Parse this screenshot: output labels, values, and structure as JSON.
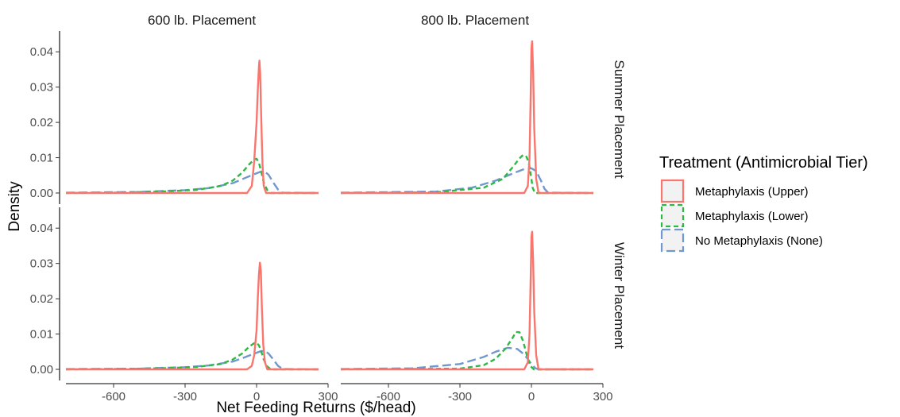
{
  "chart_data": {
    "type": "line",
    "subtype": "density",
    "xlabel": "Net Feeding Returns ($/head)",
    "ylabel": "Density",
    "xlim": [
      -800,
      300
    ],
    "ylim": [
      0,
      0.045
    ],
    "x_ticks": [
      -600,
      -300,
      0,
      300
    ],
    "x_tick_labels": [
      "-600",
      "-300",
      "0",
      "300"
    ],
    "y_ticks": [
      0,
      0.01,
      0.02,
      0.03,
      0.04
    ],
    "y_tick_labels": [
      "0.00",
      "0.01",
      "0.02",
      "0.03",
      "0.04"
    ],
    "col_facets": [
      "600 lb. Placement",
      "800 lb. Placement"
    ],
    "row_facets": [
      "Summer Placement",
      "Winter Placement"
    ],
    "legend": {
      "title": "Treatment (Antimicrobial Tier)",
      "position": "right",
      "items": [
        {
          "label": "Metaphylaxis (Upper)",
          "color": "#F8766D",
          "dash": "solid"
        },
        {
          "label": "Metaphylaxis (Lower)",
          "color": "#2DB843",
          "dash": "dashed"
        },
        {
          "label": "No Metaphylaxis (None)",
          "color": "#7197CF",
          "dash": "longdash"
        }
      ]
    },
    "grid": false,
    "panels": [
      {
        "col": "600 lb. Placement",
        "row": "Summer Placement",
        "series": [
          {
            "name": "Metaphylaxis (Upper)",
            "x": [
              -800,
              -40,
              -20,
              -10,
              0,
              5,
              10,
              12,
              15,
              20,
              25,
              30,
              40,
              260
            ],
            "y": [
              0,
              0,
              0.002,
              0.009,
              0.02,
              0.029,
              0.036,
              0.0375,
              0.034,
              0.02,
              0.008,
              0.002,
              0,
              0
            ]
          },
          {
            "name": "Metaphylaxis (Lower)",
            "x": [
              -800,
              -600,
              -400,
              -250,
              -150,
              -100,
              -60,
              -30,
              -10,
              0,
              10,
              20,
              30,
              45,
              60,
              260
            ],
            "y": [
              0,
              0.0001,
              0.0004,
              0.0009,
              0.002,
              0.0035,
              0.0058,
              0.0082,
              0.0095,
              0.0097,
              0.0085,
              0.006,
              0.003,
              0.0008,
              0,
              0
            ]
          },
          {
            "name": "No Metaphylaxis (None)",
            "x": [
              -800,
              -500,
              -300,
              -200,
              -100,
              -50,
              0,
              20,
              35,
              50,
              70,
              90,
              110,
              260
            ],
            "y": [
              0.0001,
              0.0003,
              0.0008,
              0.0014,
              0.0028,
              0.0042,
              0.0056,
              0.0061,
              0.006,
              0.0052,
              0.003,
              0.001,
              0.0001,
              0
            ]
          }
        ]
      },
      {
        "col": "800 lb. Placement",
        "row": "Summer Placement",
        "series": [
          {
            "name": "Metaphylaxis (Upper)",
            "x": [
              -800,
              -30,
              -15,
              -8,
              -3,
              0,
              3,
              7,
              12,
              20,
              30,
              260
            ],
            "y": [
              0,
              0,
              0.002,
              0.01,
              0.028,
              0.041,
              0.043,
              0.035,
              0.018,
              0.004,
              0,
              0
            ]
          },
          {
            "name": "Metaphylaxis (Lower)",
            "x": [
              -800,
              -400,
              -200,
              -120,
              -80,
              -50,
              -35,
              -20,
              -10,
              0,
              5,
              15,
              260
            ],
            "y": [
              0,
              0.0002,
              0.0015,
              0.004,
              0.0072,
              0.0098,
              0.0108,
              0.0102,
              0.0082,
              0.004,
              0.0015,
              0,
              0
            ]
          },
          {
            "name": "No Metaphylaxis (None)",
            "x": [
              -800,
              -400,
              -250,
              -150,
              -80,
              -30,
              0,
              20,
              40,
              55,
              70,
              260
            ],
            "y": [
              0.0001,
              0.0004,
              0.0015,
              0.0035,
              0.0055,
              0.0068,
              0.007,
              0.0062,
              0.0035,
              0.0012,
              0.0001,
              0
            ]
          }
        ]
      },
      {
        "col": "600 lb. Placement",
        "row": "Winter Placement",
        "series": [
          {
            "name": "Metaphylaxis (Upper)",
            "x": [
              -800,
              -40,
              -20,
              -10,
              0,
              5,
              10,
              14,
              18,
              22,
              28,
              35,
              45,
              260
            ],
            "y": [
              0,
              0,
              0.001,
              0.004,
              0.011,
              0.02,
              0.027,
              0.0302,
              0.028,
              0.018,
              0.007,
              0.002,
              0,
              0
            ]
          },
          {
            "name": "Metaphylaxis (Lower)",
            "x": [
              -800,
              -600,
              -400,
              -250,
              -150,
              -100,
              -60,
              -30,
              -10,
              0,
              10,
              20,
              30,
              45,
              60,
              260
            ],
            "y": [
              0,
              0.0001,
              0.0003,
              0.0007,
              0.0015,
              0.0028,
              0.0045,
              0.0065,
              0.0074,
              0.0075,
              0.0068,
              0.005,
              0.0028,
              0.0008,
              0,
              0
            ]
          },
          {
            "name": "No Metaphylaxis (None)",
            "x": [
              -800,
              -500,
              -300,
              -200,
              -100,
              -50,
              0,
              20,
              35,
              50,
              70,
              90,
              110,
              260
            ],
            "y": [
              0.0001,
              0.0002,
              0.0006,
              0.0011,
              0.0022,
              0.0034,
              0.0047,
              0.0052,
              0.0051,
              0.0045,
              0.0028,
              0.001,
              0.0001,
              0
            ]
          }
        ]
      },
      {
        "col": "800 lb. Placement",
        "row": "Winter Placement",
        "series": [
          {
            "name": "Metaphylaxis (Upper)",
            "x": [
              -800,
              -30,
              -15,
              -8,
              -3,
              0,
              3,
              7,
              12,
              20,
              30,
              260
            ],
            "y": [
              0,
              0,
              0.002,
              0.01,
              0.026,
              0.0375,
              0.039,
              0.031,
              0.016,
              0.004,
              0,
              0
            ]
          },
          {
            "name": "Metaphylaxis (Lower)",
            "x": [
              -800,
              -300,
              -200,
              -150,
              -110,
              -80,
              -65,
              -50,
              -35,
              -20,
              -5,
              10,
              260
            ],
            "y": [
              0,
              0.0002,
              0.0012,
              0.003,
              0.0058,
              0.0088,
              0.0106,
              0.0105,
              0.008,
              0.0042,
              0.001,
              0,
              0
            ]
          },
          {
            "name": "No Metaphylaxis (None)",
            "x": [
              -800,
              -500,
              -300,
              -200,
              -150,
              -100,
              -60,
              -30,
              0,
              15,
              30,
              260
            ],
            "y": [
              0.0001,
              0.0003,
              0.0015,
              0.0035,
              0.005,
              0.0061,
              0.0058,
              0.0042,
              0.0015,
              0.0004,
              0,
              0
            ]
          }
        ]
      }
    ]
  }
}
